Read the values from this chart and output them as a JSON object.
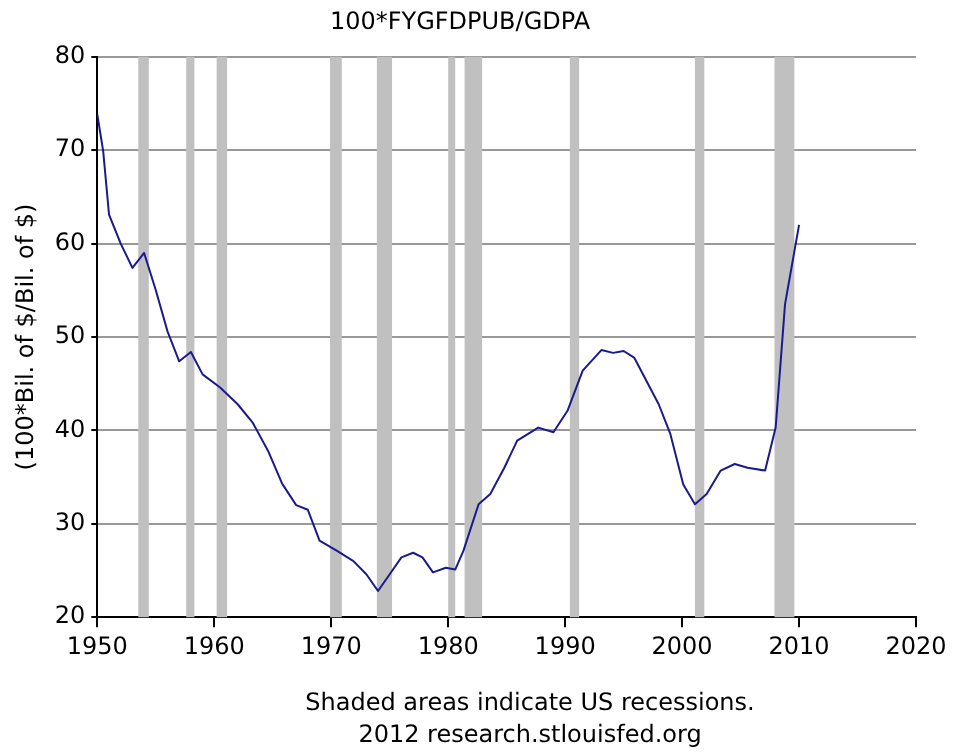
{
  "chart_data": {
    "type": "line",
    "title": "100*FYGFDPUB/GDPA",
    "ylabel": "(100*Bil. of $/Bil. of $)",
    "annotations": [
      "Shaded areas indicate US recessions.",
      "2012 research.stlouisfed.org"
    ],
    "xlim": [
      1950,
      2020
    ],
    "xticks": [
      1950,
      1960,
      1970,
      1980,
      1990,
      2000,
      2010,
      2020
    ],
    "ylim": [
      20,
      80
    ],
    "yticks": [
      20,
      30,
      40,
      50,
      60,
      70,
      80
    ],
    "grid": "y",
    "legend": false,
    "marker": "none",
    "line_style": "solid",
    "bands": [
      {
        "axis": "x",
        "from": 1953.5,
        "to": 1954.4,
        "color": "#c0c0c0"
      },
      {
        "axis": "x",
        "from": 1957.6,
        "to": 1958.3,
        "color": "#c0c0c0"
      },
      {
        "axis": "x",
        "from": 1960.2,
        "to": 1961.1,
        "color": "#c0c0c0"
      },
      {
        "axis": "x",
        "from": 1969.9,
        "to": 1970.9,
        "color": "#c0c0c0"
      },
      {
        "axis": "x",
        "from": 1973.9,
        "to": 1975.2,
        "color": "#c0c0c0"
      },
      {
        "axis": "x",
        "from": 1980.0,
        "to": 1980.6,
        "color": "#c0c0c0"
      },
      {
        "axis": "x",
        "from": 1981.4,
        "to": 1982.9,
        "color": "#c0c0c0"
      },
      {
        "axis": "x",
        "from": 1990.4,
        "to": 1991.2,
        "color": "#c0c0c0"
      },
      {
        "axis": "x",
        "from": 2001.1,
        "to": 2001.9,
        "color": "#c0c0c0"
      },
      {
        "axis": "x",
        "from": 2007.9,
        "to": 2009.6,
        "color": "#c0c0c0"
      }
    ],
    "series": [
      {
        "color": "#1a1a8c",
        "x": [
          1950,
          1950.5,
          1951,
          1952,
          1953,
          1954,
          1955,
          1956,
          1957,
          1958,
          1959,
          1960.5,
          1962,
          1963.3,
          1964.6,
          1965.8,
          1967,
          1968,
          1969,
          1970.5,
          1971.9,
          1973,
          1974,
          1975,
          1976,
          1977,
          1977.8,
          1978.7,
          1979.8,
          1980.6,
          1981.3,
          1982.6,
          1983.6,
          1984.8,
          1985.9,
          1987.7,
          1989,
          1990.2,
          1991.5,
          1993.1,
          1994.1,
          1995,
          1995.9,
          1998,
          1999,
          2000.1,
          2001.1,
          2002.1,
          2003.3,
          2004.5,
          2005.6,
          2007.1,
          2008,
          2008.8,
          2010
        ],
        "values": [
          73.8,
          69.9,
          63.1,
          60,
          57.4,
          59,
          55,
          50.6,
          47.4,
          48.4,
          46,
          44.6,
          42.8,
          40.8,
          37.8,
          34.3,
          32,
          31.5,
          28.2,
          27.1,
          26,
          24.6,
          22.8,
          24.6,
          26.4,
          26.9,
          26.4,
          24.8,
          25.3,
          25.1,
          27.1,
          32.1,
          33.2,
          36,
          38.9,
          40.3,
          39.8,
          42.1,
          46.4,
          48.6,
          48.3,
          48.5,
          47.8,
          42.8,
          39.6,
          34.2,
          32.1,
          33.2,
          35.7,
          36.4,
          36,
          35.7,
          40.3,
          53.5,
          62
        ]
      }
    ]
  }
}
